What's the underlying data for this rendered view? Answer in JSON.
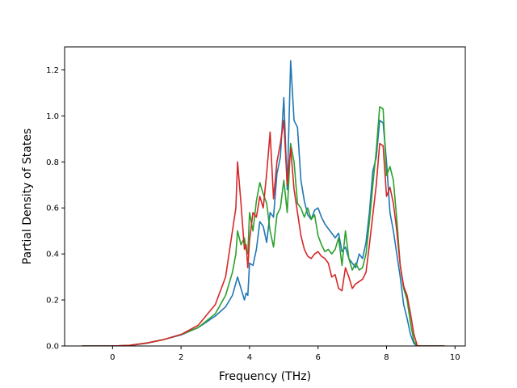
{
  "chart_data": {
    "type": "line",
    "title": "",
    "xlabel": "Frequency (THz)",
    "ylabel": "Partial Density of States",
    "xlim": [
      -1.4,
      10.3
    ],
    "ylim": [
      0.0,
      1.3
    ],
    "xticks": [
      0,
      2,
      4,
      6,
      8,
      10
    ],
    "yticks": [
      0.0,
      0.2,
      0.4,
      0.6,
      0.8,
      1.0,
      1.2
    ],
    "xtick_labels": [
      "0",
      "2",
      "4",
      "6",
      "8",
      "10"
    ],
    "ytick_labels": [
      "0.0",
      "0.2",
      "0.4",
      "0.6",
      "0.8",
      "1.0",
      "1.2"
    ],
    "grid": false,
    "legend": "none",
    "series": [
      {
        "color": "#1f77b4",
        "points": [
          [
            -0.9,
            0.0
          ],
          [
            0.0,
            0.0
          ],
          [
            0.5,
            0.002
          ],
          [
            1.0,
            0.012
          ],
          [
            1.5,
            0.028
          ],
          [
            2.0,
            0.048
          ],
          [
            2.5,
            0.08
          ],
          [
            3.0,
            0.13
          ],
          [
            3.3,
            0.17
          ],
          [
            3.5,
            0.22
          ],
          [
            3.65,
            0.3
          ],
          [
            3.75,
            0.25
          ],
          [
            3.85,
            0.2
          ],
          [
            3.9,
            0.23
          ],
          [
            3.95,
            0.22
          ],
          [
            4.0,
            0.36
          ],
          [
            4.1,
            0.35
          ],
          [
            4.2,
            0.42
          ],
          [
            4.3,
            0.54
          ],
          [
            4.4,
            0.52
          ],
          [
            4.5,
            0.45
          ],
          [
            4.6,
            0.58
          ],
          [
            4.7,
            0.56
          ],
          [
            4.8,
            0.75
          ],
          [
            4.9,
            0.82
          ],
          [
            5.0,
            1.08
          ],
          [
            5.1,
            0.68
          ],
          [
            5.2,
            1.24
          ],
          [
            5.3,
            0.98
          ],
          [
            5.4,
            0.95
          ],
          [
            5.5,
            0.72
          ],
          [
            5.6,
            0.63
          ],
          [
            5.7,
            0.57
          ],
          [
            5.8,
            0.55
          ],
          [
            5.9,
            0.59
          ],
          [
            6.0,
            0.6
          ],
          [
            6.1,
            0.56
          ],
          [
            6.2,
            0.53
          ],
          [
            6.3,
            0.51
          ],
          [
            6.4,
            0.49
          ],
          [
            6.5,
            0.47
          ],
          [
            6.6,
            0.49
          ],
          [
            6.7,
            0.41
          ],
          [
            6.8,
            0.43
          ],
          [
            6.9,
            0.38
          ],
          [
            7.0,
            0.36
          ],
          [
            7.1,
            0.34
          ],
          [
            7.2,
            0.4
          ],
          [
            7.3,
            0.38
          ],
          [
            7.4,
            0.45
          ],
          [
            7.5,
            0.58
          ],
          [
            7.6,
            0.76
          ],
          [
            7.7,
            0.82
          ],
          [
            7.8,
            0.98
          ],
          [
            7.9,
            0.97
          ],
          [
            8.0,
            0.8
          ],
          [
            8.1,
            0.58
          ],
          [
            8.2,
            0.5
          ],
          [
            8.3,
            0.4
          ],
          [
            8.4,
            0.3
          ],
          [
            8.5,
            0.18
          ],
          [
            8.6,
            0.12
          ],
          [
            8.7,
            0.05
          ],
          [
            8.8,
            0.01
          ],
          [
            8.9,
            0.0
          ],
          [
            9.7,
            0.0
          ]
        ]
      },
      {
        "color": "#2ca02c",
        "points": [
          [
            -0.9,
            0.0
          ],
          [
            0.0,
            0.0
          ],
          [
            0.5,
            0.003
          ],
          [
            1.0,
            0.013
          ],
          [
            1.5,
            0.028
          ],
          [
            2.0,
            0.05
          ],
          [
            2.5,
            0.08
          ],
          [
            3.0,
            0.14
          ],
          [
            3.3,
            0.22
          ],
          [
            3.5,
            0.32
          ],
          [
            3.6,
            0.4
          ],
          [
            3.65,
            0.5
          ],
          [
            3.75,
            0.44
          ],
          [
            3.85,
            0.47
          ],
          [
            3.9,
            0.42
          ],
          [
            3.95,
            0.4
          ],
          [
            4.0,
            0.58
          ],
          [
            4.1,
            0.5
          ],
          [
            4.2,
            0.63
          ],
          [
            4.3,
            0.71
          ],
          [
            4.4,
            0.66
          ],
          [
            4.5,
            0.62
          ],
          [
            4.6,
            0.5
          ],
          [
            4.7,
            0.43
          ],
          [
            4.8,
            0.57
          ],
          [
            4.9,
            0.6
          ],
          [
            5.0,
            0.72
          ],
          [
            5.1,
            0.58
          ],
          [
            5.2,
            0.88
          ],
          [
            5.3,
            0.8
          ],
          [
            5.4,
            0.62
          ],
          [
            5.5,
            0.6
          ],
          [
            5.6,
            0.56
          ],
          [
            5.7,
            0.6
          ],
          [
            5.8,
            0.55
          ],
          [
            5.9,
            0.57
          ],
          [
            6.0,
            0.48
          ],
          [
            6.1,
            0.44
          ],
          [
            6.2,
            0.41
          ],
          [
            6.3,
            0.42
          ],
          [
            6.4,
            0.4
          ],
          [
            6.5,
            0.42
          ],
          [
            6.6,
            0.47
          ],
          [
            6.7,
            0.35
          ],
          [
            6.8,
            0.5
          ],
          [
            6.9,
            0.38
          ],
          [
            7.0,
            0.33
          ],
          [
            7.1,
            0.36
          ],
          [
            7.2,
            0.33
          ],
          [
            7.3,
            0.34
          ],
          [
            7.4,
            0.4
          ],
          [
            7.5,
            0.54
          ],
          [
            7.6,
            0.7
          ],
          [
            7.7,
            0.85
          ],
          [
            7.8,
            1.04
          ],
          [
            7.9,
            1.03
          ],
          [
            8.0,
            0.74
          ],
          [
            8.1,
            0.78
          ],
          [
            8.2,
            0.72
          ],
          [
            8.3,
            0.55
          ],
          [
            8.4,
            0.35
          ],
          [
            8.5,
            0.25
          ],
          [
            8.6,
            0.2
          ],
          [
            8.7,
            0.1
          ],
          [
            8.8,
            0.02
          ],
          [
            8.9,
            0.0
          ],
          [
            9.7,
            0.0
          ]
        ]
      },
      {
        "color": "#d62728",
        "points": [
          [
            -0.9,
            0.0
          ],
          [
            0.0,
            0.0
          ],
          [
            0.5,
            0.003
          ],
          [
            1.0,
            0.013
          ],
          [
            1.5,
            0.028
          ],
          [
            2.0,
            0.05
          ],
          [
            2.5,
            0.09
          ],
          [
            3.0,
            0.18
          ],
          [
            3.3,
            0.3
          ],
          [
            3.5,
            0.5
          ],
          [
            3.6,
            0.6
          ],
          [
            3.65,
            0.8
          ],
          [
            3.75,
            0.62
          ],
          [
            3.85,
            0.42
          ],
          [
            3.9,
            0.44
          ],
          [
            3.95,
            0.34
          ],
          [
            4.0,
            0.46
          ],
          [
            4.1,
            0.58
          ],
          [
            4.2,
            0.56
          ],
          [
            4.3,
            0.65
          ],
          [
            4.4,
            0.6
          ],
          [
            4.5,
            0.75
          ],
          [
            4.6,
            0.93
          ],
          [
            4.7,
            0.64
          ],
          [
            4.8,
            0.8
          ],
          [
            4.9,
            0.88
          ],
          [
            5.0,
            0.98
          ],
          [
            5.1,
            0.7
          ],
          [
            5.2,
            0.86
          ],
          [
            5.3,
            0.68
          ],
          [
            5.4,
            0.58
          ],
          [
            5.5,
            0.48
          ],
          [
            5.6,
            0.42
          ],
          [
            5.7,
            0.39
          ],
          [
            5.8,
            0.38
          ],
          [
            5.9,
            0.4
          ],
          [
            6.0,
            0.41
          ],
          [
            6.1,
            0.39
          ],
          [
            6.2,
            0.38
          ],
          [
            6.3,
            0.36
          ],
          [
            6.4,
            0.3
          ],
          [
            6.5,
            0.31
          ],
          [
            6.6,
            0.25
          ],
          [
            6.7,
            0.24
          ],
          [
            6.8,
            0.34
          ],
          [
            6.9,
            0.3
          ],
          [
            7.0,
            0.25
          ],
          [
            7.1,
            0.27
          ],
          [
            7.2,
            0.28
          ],
          [
            7.3,
            0.29
          ],
          [
            7.4,
            0.32
          ],
          [
            7.5,
            0.44
          ],
          [
            7.6,
            0.57
          ],
          [
            7.7,
            0.7
          ],
          [
            7.8,
            0.88
          ],
          [
            7.9,
            0.87
          ],
          [
            8.0,
            0.65
          ],
          [
            8.1,
            0.69
          ],
          [
            8.2,
            0.62
          ],
          [
            8.3,
            0.5
          ],
          [
            8.4,
            0.35
          ],
          [
            8.5,
            0.26
          ],
          [
            8.6,
            0.22
          ],
          [
            8.7,
            0.14
          ],
          [
            8.8,
            0.05
          ],
          [
            8.9,
            0.0
          ],
          [
            9.7,
            0.0
          ]
        ]
      }
    ]
  }
}
